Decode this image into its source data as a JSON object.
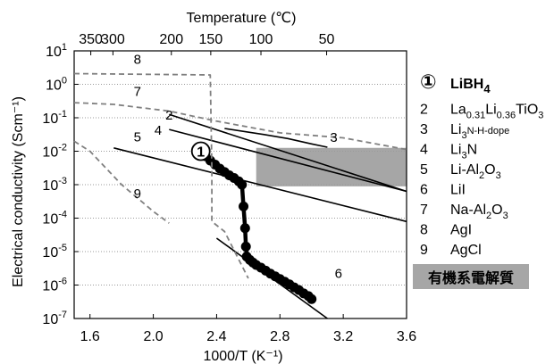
{
  "chart_data": {
    "type": "scatter",
    "xlabel": "1000/T (K⁻¹)",
    "ylabel": "Electrical conductivity (Scm⁻¹)",
    "top_axis_label": "Temperature (℃)",
    "xlim": [
      1.5,
      3.6
    ],
    "ylim_log10": [
      -7,
      1
    ],
    "y_scale": "log",
    "grid": "horizontal dotted",
    "x_ticks": [
      "1.6",
      "2.0",
      "2.4",
      "2.8",
      "3.2",
      "3.6"
    ],
    "x_tick_values": [
      1.6,
      2.0,
      2.4,
      2.8,
      3.2,
      3.6
    ],
    "y_tick_exponents": [
      "1",
      "0",
      "-1",
      "-2",
      "-3",
      "-4",
      "-5",
      "-6",
      "-7"
    ],
    "top_ticks": [
      {
        "label": "350",
        "x": 1.605
      },
      {
        "label": "300",
        "x": 1.745
      },
      {
        "label": "200",
        "x": 2.114
      },
      {
        "label": "150",
        "x": 2.363
      },
      {
        "label": "100",
        "x": 2.68
      },
      {
        "label": "50",
        "x": 3.095
      }
    ],
    "shaded_region": {
      "x": [
        2.65,
        3.6
      ],
      "log10_y": [
        -3.05,
        -1.9
      ]
    },
    "series": [
      {
        "id": "1",
        "style": "thick-markers",
        "points": [
          [
            2.33,
            -2.15
          ],
          [
            2.36,
            -2.28
          ],
          [
            2.39,
            -2.4
          ],
          [
            2.42,
            -2.52
          ],
          [
            2.45,
            -2.62
          ],
          [
            2.48,
            -2.72
          ],
          [
            2.51,
            -2.8
          ],
          [
            2.54,
            -2.9
          ],
          [
            2.56,
            -3.0
          ],
          [
            2.57,
            -3.65
          ],
          [
            2.58,
            -4.3
          ],
          [
            2.585,
            -4.85
          ],
          [
            2.59,
            -5.15
          ],
          [
            2.61,
            -5.25
          ],
          [
            2.63,
            -5.33
          ],
          [
            2.65,
            -5.4
          ],
          [
            2.68,
            -5.48
          ],
          [
            2.71,
            -5.57
          ],
          [
            2.74,
            -5.66
          ],
          [
            2.77,
            -5.74
          ],
          [
            2.8,
            -5.82
          ],
          [
            2.83,
            -5.9
          ],
          [
            2.86,
            -5.98
          ],
          [
            2.89,
            -6.07
          ],
          [
            2.92,
            -6.15
          ],
          [
            2.95,
            -6.25
          ],
          [
            2.98,
            -6.33
          ],
          [
            3.0,
            -6.42
          ]
        ]
      },
      {
        "id": "2",
        "style": "solid",
        "points": [
          [
            2.1,
            -0.9
          ],
          [
            3.6,
            -3.2
          ]
        ]
      },
      {
        "id": "3",
        "style": "solid-wavy",
        "points": [
          [
            2.45,
            -1.32
          ],
          [
            2.7,
            -1.5
          ],
          [
            2.85,
            -1.62
          ],
          [
            3.0,
            -1.78
          ],
          [
            3.1,
            -1.88
          ]
        ]
      },
      {
        "id": "4",
        "style": "solid",
        "points": [
          [
            2.1,
            -1.35
          ],
          [
            3.6,
            -3.2
          ]
        ]
      },
      {
        "id": "5",
        "style": "solid",
        "points": [
          [
            1.75,
            -1.9
          ],
          [
            3.6,
            -4.1
          ]
        ]
      },
      {
        "id": "6",
        "style": "solid",
        "points": [
          [
            2.4,
            -4.6
          ],
          [
            3.1,
            -7.0
          ]
        ]
      },
      {
        "id": "7",
        "style": "dashed",
        "points": [
          [
            1.5,
            -0.55
          ],
          [
            1.75,
            -0.6
          ],
          [
            2.1,
            -0.8
          ],
          [
            2.4,
            -1.1
          ],
          [
            2.8,
            -1.45
          ],
          [
            3.2,
            -1.6
          ],
          [
            3.6,
            -1.95
          ]
        ]
      },
      {
        "id": "8",
        "style": "dashed",
        "points": [
          [
            1.5,
            0.32
          ],
          [
            2.36,
            0.28
          ],
          [
            2.37,
            -2.5
          ],
          [
            2.37,
            -4.1
          ],
          [
            2.45,
            -4.4
          ],
          [
            2.6,
            -5.8
          ]
        ]
      },
      {
        "id": "9",
        "style": "dashed",
        "points": [
          [
            1.5,
            -1.7
          ],
          [
            1.6,
            -2.0
          ],
          [
            1.8,
            -3.0
          ],
          [
            2.0,
            -3.8
          ],
          [
            2.1,
            -4.15
          ]
        ]
      }
    ],
    "series_labels": [
      {
        "text": "8",
        "x": 1.9,
        "y": 0.62
      },
      {
        "text": "7",
        "x": 1.9,
        "y": -0.35
      },
      {
        "text": "2",
        "x": 2.1,
        "y": -1.05
      },
      {
        "text": "4",
        "x": 2.03,
        "y": -1.5
      },
      {
        "text": "5",
        "x": 1.9,
        "y": -1.7
      },
      {
        "text": "9",
        "x": 1.9,
        "y": -3.4
      },
      {
        "text": "3",
        "x": 3.14,
        "y": -1.72
      },
      {
        "text": "6",
        "x": 3.17,
        "y": -5.78
      }
    ],
    "circled_label": {
      "text": "1",
      "x": 2.3,
      "y": -2.0
    }
  },
  "legend": {
    "items": [
      {
        "num": "①",
        "parts": [
          "LiBH",
          "4",
          ""
        ]
      },
      {
        "num": "2",
        "parts": [
          "La",
          "0.31",
          "Li",
          "0.36",
          "TiO",
          "3",
          ""
        ]
      },
      {
        "num": "3",
        "parts": [
          "Li",
          "3",
          "N-H-dope"
        ]
      },
      {
        "num": "4",
        "parts": [
          "Li",
          "3",
          "N"
        ]
      },
      {
        "num": "5",
        "parts": [
          "Li-Al",
          "2",
          "O",
          "3",
          ""
        ]
      },
      {
        "num": "6",
        "parts": [
          "LiI"
        ]
      },
      {
        "num": "7",
        "parts": [
          "Na-Al",
          "2",
          "O",
          "3",
          ""
        ]
      },
      {
        "num": "8",
        "parts": [
          "AgI"
        ]
      },
      {
        "num": "9",
        "parts": [
          "AgCl"
        ]
      }
    ],
    "box_label": "有機系電解質"
  },
  "colors": {
    "axis": "#000000",
    "line": "#000000",
    "dashed": "#808080",
    "shade": "#a6a6a6",
    "grid": "#9a9a9a",
    "box": "#a6a6a6"
  }
}
